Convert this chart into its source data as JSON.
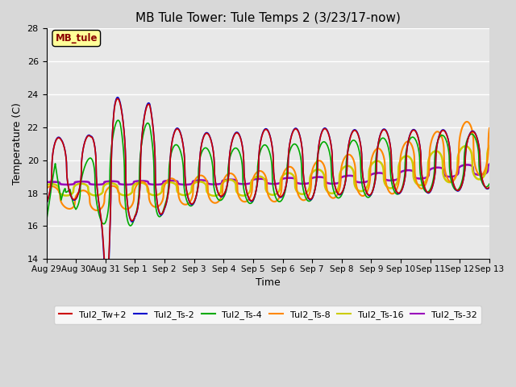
{
  "title": "MB Tule Tower: Tule Temps 2 (3/23/17-now)",
  "xlabel": "Time",
  "ylabel": "Temperature (C)",
  "ylim": [
    14,
    28
  ],
  "yticks": [
    14,
    16,
    18,
    20,
    22,
    24,
    26,
    28
  ],
  "x_labels": [
    "Aug 29",
    "Aug 30",
    "Aug 31",
    "Sep 1",
    "Sep 2",
    "Sep 3",
    "Sep 4",
    "Sep 5",
    "Sep 6",
    "Sep 7",
    "Sep 8",
    "Sep 9",
    "Sep 10",
    "Sep 11",
    "Sep 12",
    "Sep 13"
  ],
  "annotation_text": "MB_tule",
  "annotation_color": "#8B0000",
  "annotation_bg": "#FFFF99",
  "plot_bg_color": "#E8E8E8",
  "fig_bg_color": "#D8D8D8",
  "series": {
    "Tul2_Tw+2": {
      "color": "#CC0000",
      "lw": 1.2
    },
    "Tul2_Ts-2": {
      "color": "#0000CC",
      "lw": 1.2
    },
    "Tul2_Ts-4": {
      "color": "#00AA00",
      "lw": 1.2
    },
    "Tul2_Ts-8": {
      "color": "#FF8800",
      "lw": 1.5
    },
    "Tul2_Ts-16": {
      "color": "#CCCC00",
      "lw": 1.8
    },
    "Tul2_Ts-32": {
      "color": "#9900BB",
      "lw": 1.8
    }
  }
}
